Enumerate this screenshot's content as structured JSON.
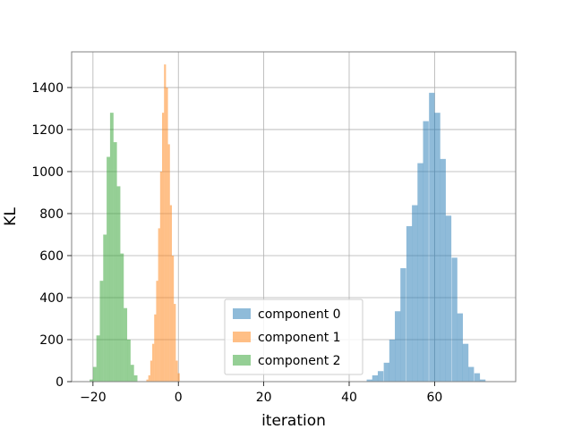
{
  "chart_data": {
    "type": "bar",
    "xlabel": "iteration",
    "ylabel": "KL",
    "xlim": [
      -25,
      79
    ],
    "ylim": [
      0,
      1570
    ],
    "x_ticks": [
      -20,
      0,
      20,
      40,
      60
    ],
    "x_tick_labels": [
      "−20",
      "0",
      "20",
      "40",
      "60"
    ],
    "y_ticks": [
      0,
      200,
      400,
      600,
      800,
      1000,
      1200,
      1400
    ],
    "y_tick_labels": [
      "0",
      "200",
      "400",
      "600",
      "800",
      "1000",
      "1200",
      "1400"
    ],
    "grid": true,
    "legend_position": "lower center",
    "series": [
      {
        "name": "component 0",
        "color": "#1f77b4",
        "bin_width": 1.33,
        "bin_starts": [
          44.1,
          45.4,
          46.7,
          48.1,
          49.4,
          50.7,
          52.0,
          53.4,
          54.7,
          56.0,
          57.3,
          58.7,
          60.0,
          61.3,
          62.6,
          64.0,
          65.3,
          66.6,
          67.9,
          69.3,
          70.6
        ],
        "counts": [
          10,
          30,
          50,
          90,
          200,
          335,
          540,
          740,
          840,
          1040,
          1240,
          1375,
          1280,
          1060,
          790,
          590,
          325,
          180,
          70,
          40,
          10
        ]
      },
      {
        "name": "component 1",
        "color": "#ff7f0e",
        "bin_width": 0.46,
        "bin_starts": [
          -7.5,
          -7.04,
          -6.58,
          -6.12,
          -5.66,
          -5.2,
          -4.74,
          -4.28,
          -3.82,
          -3.36,
          -2.9,
          -2.44,
          -1.98,
          -1.52,
          -1.06,
          -0.6,
          -0.14
        ],
        "counts": [
          10,
          30,
          100,
          180,
          320,
          480,
          730,
          1000,
          1280,
          1510,
          1400,
          1130,
          840,
          600,
          370,
          100,
          40
        ]
      },
      {
        "name": "component 2",
        "color": "#2ca02c",
        "bin_width": 0.81,
        "bin_starts": [
          -20.8,
          -20.0,
          -19.2,
          -18.4,
          -17.6,
          -16.8,
          -16.0,
          -15.2,
          -14.4,
          -13.6,
          -12.8,
          -12.0,
          -11.2,
          -10.4
        ],
        "counts": [
          10,
          70,
          220,
          480,
          700,
          1070,
          1280,
          1140,
          930,
          610,
          350,
          200,
          80,
          30
        ]
      }
    ]
  }
}
